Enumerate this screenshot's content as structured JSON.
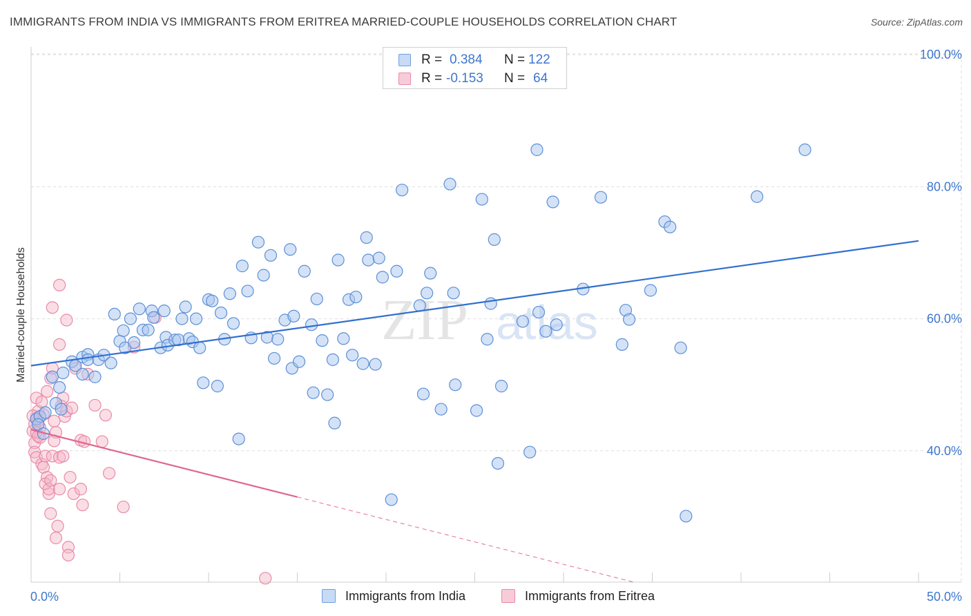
{
  "title": "IMMIGRANTS FROM INDIA VS IMMIGRANTS FROM ERITREA MARRIED-COUPLE HOUSEHOLDS CORRELATION CHART",
  "source": "Source: ZipAtlas.com",
  "watermark": {
    "zip": "ZIP",
    "atlas": "atlas"
  },
  "colors": {
    "india_fill": "#aac6ef",
    "india_stroke": "#5b8fd6",
    "india_line": "#2f6fcf",
    "eritrea_fill": "#f4b6c8",
    "eritrea_stroke": "#e88aa6",
    "eritrea_line": "#e06490",
    "axis_text": "#3d76cf",
    "grid": "#dddddd"
  },
  "legend": {
    "rows": [
      {
        "r_label": "R =",
        "r_value": "0.384",
        "n_label": "N =",
        "n_value": "122"
      },
      {
        "r_label": "R =",
        "r_value": "-0.153",
        "n_label": "N =",
        "n_value": "64"
      }
    ]
  },
  "bottom_legend": {
    "india": "Immigrants from India",
    "eritrea": "Immigrants from Eritrea"
  },
  "chart_data": {
    "type": "scatter",
    "title": "IMMIGRANTS FROM INDIA VS IMMIGRANTS FROM ERITREA MARRIED-COUPLE HOUSEHOLDS CORRELATION CHART",
    "xlabel": "",
    "ylabel": "Married-couple Households",
    "xlim": [
      0,
      50
    ],
    "ylim": [
      20,
      102
    ],
    "x_tick_labels": [
      "0.0%",
      "50.0%"
    ],
    "y_ticks": [
      40,
      60,
      80,
      100
    ],
    "y_tick_labels": [
      "40.0%",
      "60.0%",
      "80.0%",
      "100.0%"
    ],
    "grid": true,
    "legend_position": "top-center",
    "series": [
      {
        "name": "Immigrants from India",
        "r": 0.384,
        "n": 122,
        "trend": {
          "x": [
            0,
            50
          ],
          "y": [
            52.9,
            71.8
          ],
          "style": "solid"
        },
        "points": [
          [
            0.3,
            44.8
          ],
          [
            0.5,
            45.2
          ],
          [
            0.4,
            44.0
          ],
          [
            0.7,
            42.6
          ],
          [
            0.8,
            45.8
          ],
          [
            1.2,
            51.2
          ],
          [
            1.4,
            47.2
          ],
          [
            1.6,
            49.6
          ],
          [
            1.7,
            46.3
          ],
          [
            1.8,
            51.8
          ],
          [
            2.3,
            53.5
          ],
          [
            2.5,
            52.9
          ],
          [
            2.9,
            54.2
          ],
          [
            2.9,
            51.6
          ],
          [
            3.2,
            54.6
          ],
          [
            3.2,
            53.8
          ],
          [
            3.6,
            51.2
          ],
          [
            3.8,
            53.8
          ],
          [
            4.1,
            54.5
          ],
          [
            4.5,
            53.3
          ],
          [
            4.7,
            60.7
          ],
          [
            5.0,
            56.6
          ],
          [
            5.2,
            58.2
          ],
          [
            5.3,
            55.6
          ],
          [
            5.6,
            60.0
          ],
          [
            5.8,
            56.4
          ],
          [
            6.1,
            61.5
          ],
          [
            6.3,
            58.3
          ],
          [
            6.6,
            58.3
          ],
          [
            6.8,
            61.2
          ],
          [
            6.9,
            60.2
          ],
          [
            7.3,
            55.6
          ],
          [
            7.5,
            61.2
          ],
          [
            7.6,
            57.2
          ],
          [
            7.7,
            56.0
          ],
          [
            8.1,
            56.8
          ],
          [
            8.3,
            56.8
          ],
          [
            8.5,
            60.0
          ],
          [
            8.7,
            61.8
          ],
          [
            8.9,
            57.0
          ],
          [
            9.1,
            56.5
          ],
          [
            9.3,
            60.0
          ],
          [
            9.5,
            55.6
          ],
          [
            9.7,
            50.3
          ],
          [
            10.0,
            62.9
          ],
          [
            10.2,
            62.7
          ],
          [
            10.5,
            49.8
          ],
          [
            10.7,
            60.9
          ],
          [
            10.9,
            56.9
          ],
          [
            11.2,
            63.8
          ],
          [
            11.4,
            59.3
          ],
          [
            11.7,
            41.8
          ],
          [
            11.9,
            68.0
          ],
          [
            12.2,
            64.2
          ],
          [
            12.4,
            57.1
          ],
          [
            12.8,
            71.6
          ],
          [
            13.1,
            66.6
          ],
          [
            13.3,
            57.2
          ],
          [
            13.5,
            69.6
          ],
          [
            13.7,
            54.0
          ],
          [
            13.9,
            56.9
          ],
          [
            14.3,
            59.8
          ],
          [
            14.6,
            70.5
          ],
          [
            14.7,
            52.5
          ],
          [
            14.8,
            60.4
          ],
          [
            15.1,
            53.5
          ],
          [
            15.4,
            67.2
          ],
          [
            15.8,
            59.1
          ],
          [
            15.9,
            48.8
          ],
          [
            16.1,
            63.0
          ],
          [
            16.4,
            56.7
          ],
          [
            16.7,
            48.5
          ],
          [
            17.0,
            53.8
          ],
          [
            17.1,
            44.2
          ],
          [
            17.3,
            68.9
          ],
          [
            17.6,
            57.0
          ],
          [
            17.9,
            62.9
          ],
          [
            18.1,
            54.5
          ],
          [
            18.3,
            63.3
          ],
          [
            18.7,
            53.2
          ],
          [
            18.9,
            72.3
          ],
          [
            19.0,
            68.9
          ],
          [
            19.4,
            53.1
          ],
          [
            19.6,
            69.2
          ],
          [
            19.8,
            66.3
          ],
          [
            20.3,
            32.6
          ],
          [
            20.6,
            67.2
          ],
          [
            20.9,
            79.5
          ],
          [
            21.9,
            62.0
          ],
          [
            22.1,
            48.6
          ],
          [
            22.3,
            63.9
          ],
          [
            22.5,
            66.9
          ],
          [
            23.1,
            46.3
          ],
          [
            23.8,
            63.9
          ],
          [
            23.6,
            80.4
          ],
          [
            23.9,
            50.0
          ],
          [
            25.1,
            46.1
          ],
          [
            25.4,
            78.1
          ],
          [
            25.7,
            56.9
          ],
          [
            25.9,
            62.3
          ],
          [
            26.1,
            72.0
          ],
          [
            26.3,
            38.1
          ],
          [
            26.5,
            49.8
          ],
          [
            27.7,
            59.6
          ],
          [
            28.1,
            39.8
          ],
          [
            28.5,
            85.6
          ],
          [
            28.6,
            61.0
          ],
          [
            29.0,
            58.1
          ],
          [
            29.4,
            77.7
          ],
          [
            29.6,
            59.1
          ],
          [
            31.1,
            64.5
          ],
          [
            32.1,
            78.4
          ],
          [
            33.3,
            56.1
          ],
          [
            33.5,
            61.3
          ],
          [
            33.7,
            59.9
          ],
          [
            34.9,
            64.3
          ],
          [
            35.7,
            74.7
          ],
          [
            36.0,
            73.9
          ],
          [
            36.6,
            55.6
          ],
          [
            36.9,
            30.1
          ],
          [
            40.9,
            78.5
          ],
          [
            43.6,
            85.6
          ]
        ]
      },
      {
        "name": "Immigrants from Eritrea",
        "r": -0.153,
        "n": 64,
        "trend": {
          "x": [
            0,
            15
          ],
          "y": [
            43.2,
            33.0
          ],
          "style": "solid"
        },
        "trend_extension": {
          "x": [
            15,
            40
          ],
          "y": [
            33.0,
            16.0
          ],
          "style": "dashed"
        },
        "points": [
          [
            0.1,
            43.0
          ],
          [
            0.2,
            41.2
          ],
          [
            0.2,
            39.8
          ],
          [
            0.3,
            45.0
          ],
          [
            0.3,
            48.0
          ],
          [
            0.4,
            46.0
          ],
          [
            0.4,
            44.5
          ],
          [
            0.5,
            43.5
          ],
          [
            0.5,
            42.0
          ],
          [
            0.3,
            39.0
          ],
          [
            0.6,
            47.4
          ],
          [
            0.7,
            45.5
          ],
          [
            0.6,
            38.0
          ],
          [
            0.8,
            39.2
          ],
          [
            0.7,
            37.5
          ],
          [
            0.9,
            36.0
          ],
          [
            0.8,
            35.0
          ],
          [
            1.0,
            33.5
          ],
          [
            1.0,
            34.2
          ],
          [
            1.1,
            35.5
          ],
          [
            0.9,
            49.0
          ],
          [
            1.1,
            51.0
          ],
          [
            1.2,
            52.5
          ],
          [
            1.3,
            44.5
          ],
          [
            1.4,
            42.8
          ],
          [
            1.3,
            41.5
          ],
          [
            1.2,
            39.2
          ],
          [
            1.1,
            30.5
          ],
          [
            1.4,
            26.8
          ],
          [
            1.5,
            28.6
          ],
          [
            1.6,
            39.0
          ],
          [
            1.6,
            34.2
          ],
          [
            1.7,
            46.8
          ],
          [
            1.8,
            39.2
          ],
          [
            1.8,
            48.0
          ],
          [
            1.9,
            45.2
          ],
          [
            2.0,
            46.0
          ],
          [
            2.1,
            25.4
          ],
          [
            2.1,
            24.2
          ],
          [
            2.2,
            36.0
          ],
          [
            2.3,
            46.5
          ],
          [
            2.4,
            33.5
          ],
          [
            2.5,
            52.5
          ],
          [
            2.0,
            59.8
          ],
          [
            1.6,
            56.1
          ],
          [
            1.2,
            61.7
          ],
          [
            1.6,
            65.1
          ],
          [
            2.8,
            34.2
          ],
          [
            2.9,
            31.8
          ],
          [
            2.8,
            41.6
          ],
          [
            3.0,
            41.4
          ],
          [
            3.2,
            51.6
          ],
          [
            3.6,
            46.9
          ],
          [
            4.2,
            45.4
          ],
          [
            4.4,
            36.6
          ],
          [
            4.0,
            41.4
          ],
          [
            5.2,
            31.5
          ],
          [
            5.8,
            55.7
          ],
          [
            7.0,
            60.2
          ],
          [
            13.2,
            20.7
          ],
          [
            0.2,
            44.1
          ],
          [
            0.3,
            42.8
          ],
          [
            0.4,
            42.2
          ],
          [
            0.1,
            45.3
          ]
        ]
      }
    ]
  }
}
